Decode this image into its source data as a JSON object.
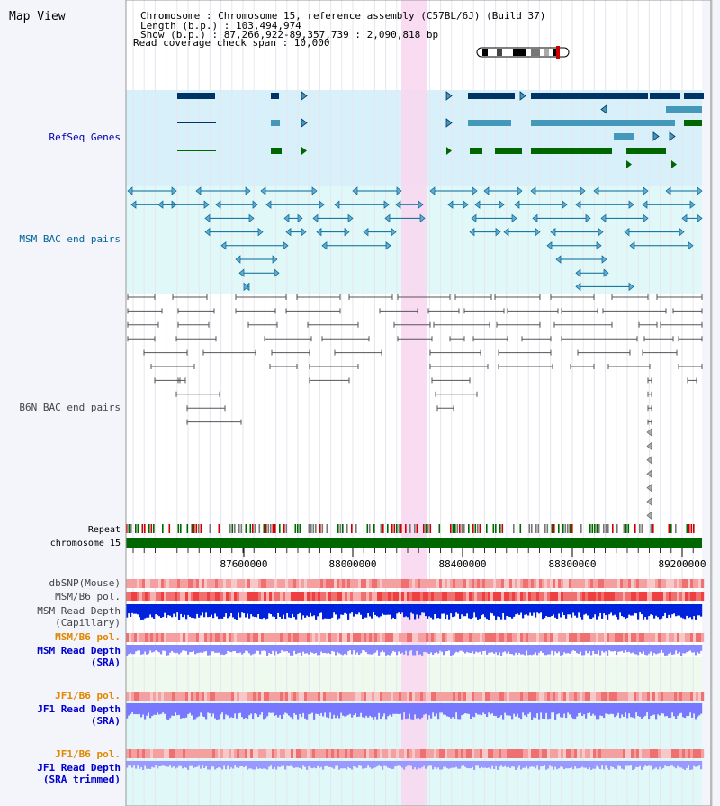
{
  "header": {
    "view_title": "Map View",
    "info_lines": [
      "Chromosome     : Chromosome 15, reference assembly (C57BL/6J) (Build 37)",
      "Length (b.p.) : 103,494,974",
      "  Show (b.p.) : 87,266,922-89,357,739 : 2,090,818 bp",
      "Read coverage check span : 10,000"
    ]
  },
  "tracks": {
    "refseq": {
      "label": "RefSeq Genes",
      "color": "#0000aa"
    },
    "msm_bac": {
      "label": "MSM BAC end pairs",
      "color": "#006699"
    },
    "b6n_bac": {
      "label": "B6N BAC end pairs",
      "color": "#444444"
    },
    "repeat": {
      "label": "Repeat",
      "color": "#000000"
    },
    "chromosome": {
      "label": "chromosome 15",
      "color": "#000000"
    },
    "dbsnp": {
      "label": "dbSNP(Mouse)",
      "color": "#444444"
    },
    "msm_b6_pol": {
      "label": "MSM/B6 pol.",
      "color": "#444444"
    },
    "msm_depth_cap": {
      "label_lines": [
        "MSM Read Depth",
        "(Capillary)"
      ],
      "color": "#444444"
    },
    "msm_b6_pol2": {
      "label": "MSM/B6 pol.",
      "color": "#e08800"
    },
    "msm_depth_sra": {
      "label_lines": [
        "MSM Read Depth",
        "(SRA)"
      ],
      "color": "#0000cc"
    },
    "jf1_b6_pol": {
      "label": "JF1/B6 pol.",
      "color": "#e08800"
    },
    "jf1_depth_sra": {
      "label_lines": [
        "JF1 Read Depth",
        "(SRA)"
      ],
      "color": "#0000cc"
    },
    "jf1_b6_pol2": {
      "label": "JF1/B6 pol.",
      "color": "#e08800"
    },
    "jf1_depth_trim": {
      "label_lines": [
        "JF1 Read Depth",
        "(SRA trimmed)"
      ],
      "color": "#0000cc"
    }
  },
  "axis": {
    "ticks": [
      "87600000",
      "88000000",
      "88400000",
      "88800000",
      "89200000"
    ]
  },
  "colors": {
    "refseq_bg": "#d8f0fa",
    "msm_bg": "#e0f8f8",
    "highlight": "#f8d8f0",
    "gene_dark": "#003366",
    "gene_mid": "#4499bb",
    "gene_green": "#006600",
    "chrom_green": "#006600"
  }
}
